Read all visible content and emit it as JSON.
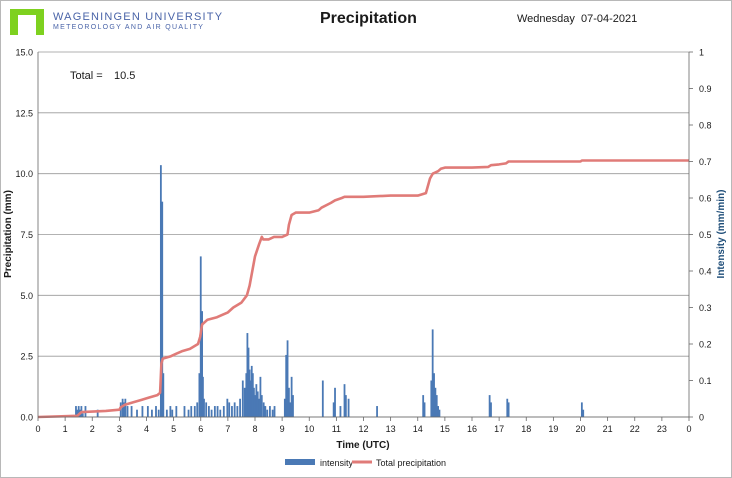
{
  "header": {
    "org_line1": "WAGENINGEN UNIVERSITY",
    "org_line2": "METEOROLOGY AND AIR QUALITY",
    "weekday": "Wednesday",
    "date": "07-04-2021"
  },
  "colors": {
    "logo_green": "#7ed11f",
    "bars": "#4a79b5",
    "line": "#e07b78",
    "grid": "#999999",
    "axis_title": "#1f4e79"
  },
  "chart_data": {
    "type": "bar+line",
    "title": "Precipitation",
    "xlabel": "Time (UTC)",
    "ylabel": "Precipitation (mm)",
    "y2label": "Intensity (mm/min)",
    "xlim": [
      0,
      24
    ],
    "ylim": [
      0,
      15
    ],
    "y2lim": [
      0,
      1
    ],
    "x_ticks": [
      "0",
      "1",
      "2",
      "3",
      "4",
      "5",
      "6",
      "7",
      "8",
      "9",
      "10",
      "11",
      "12",
      "13",
      "14",
      "15",
      "16",
      "17",
      "18",
      "19",
      "20",
      "21",
      "22",
      "23",
      "0"
    ],
    "y_ticks": [
      "0.0",
      "2.5",
      "5.0",
      "7.5",
      "10.0",
      "12.5",
      "15.0"
    ],
    "y2_ticks": [
      "0",
      "0.1",
      "0.2",
      "0.3",
      "0.4",
      "0.5",
      "0.6",
      "0.7",
      "0.8",
      "0.9",
      "1"
    ],
    "grid": "horizontal",
    "legend_position": "bottom",
    "annotation": {
      "label": "Total =",
      "value": "10.5"
    },
    "series": [
      {
        "name": "intensity",
        "kind": "bar",
        "axis": "right",
        "x": [
          1.4,
          1.45,
          1.5,
          1.55,
          1.6,
          1.65,
          1.75,
          2.2,
          3.05,
          3.12,
          3.18,
          3.22,
          3.3,
          3.45,
          3.65,
          3.85,
          4.05,
          4.2,
          4.35,
          4.45,
          4.53,
          4.58,
          4.62,
          4.75,
          4.88,
          4.95,
          5.1,
          5.4,
          5.55,
          5.65,
          5.78,
          5.87,
          5.95,
          6.0,
          6.05,
          6.08,
          6.12,
          6.2,
          6.3,
          6.4,
          6.52,
          6.62,
          6.72,
          6.85,
          6.98,
          7.05,
          7.15,
          7.25,
          7.35,
          7.45,
          7.55,
          7.62,
          7.68,
          7.72,
          7.76,
          7.8,
          7.84,
          7.88,
          7.92,
          7.96,
          8.0,
          8.05,
          8.1,
          8.15,
          8.2,
          8.25,
          8.32,
          8.38,
          8.45,
          8.55,
          8.65,
          8.72,
          9.1,
          9.15,
          9.2,
          9.25,
          9.3,
          9.35,
          9.4,
          10.5,
          10.9,
          10.95,
          11.15,
          11.3,
          11.35,
          11.45,
          12.5,
          14.2,
          14.25,
          14.5,
          14.55,
          14.6,
          14.65,
          14.7,
          14.75,
          14.8,
          16.65,
          16.7,
          17.3,
          17.35,
          20.05,
          20.1
        ],
        "values": [
          0.03,
          0.02,
          0.03,
          0.02,
          0.03,
          0.01,
          0.03,
          0.02,
          0.04,
          0.05,
          0.04,
          0.05,
          0.03,
          0.03,
          0.02,
          0.03,
          0.03,
          0.02,
          0.03,
          0.02,
          0.69,
          0.59,
          0.12,
          0.02,
          0.03,
          0.02,
          0.03,
          0.03,
          0.02,
          0.03,
          0.03,
          0.04,
          0.12,
          0.44,
          0.29,
          0.11,
          0.05,
          0.04,
          0.03,
          0.02,
          0.03,
          0.03,
          0.02,
          0.03,
          0.05,
          0.04,
          0.03,
          0.04,
          0.03,
          0.05,
          0.1,
          0.08,
          0.12,
          0.23,
          0.19,
          0.13,
          0.1,
          0.14,
          0.12,
          0.08,
          0.06,
          0.09,
          0.07,
          0.05,
          0.11,
          0.06,
          0.04,
          0.03,
          0.02,
          0.03,
          0.02,
          0.03,
          0.05,
          0.17,
          0.21,
          0.08,
          0.04,
          0.11,
          0.06,
          0.1,
          0.04,
          0.08,
          0.03,
          0.09,
          0.06,
          0.05,
          0.03,
          0.06,
          0.04,
          0.1,
          0.24,
          0.12,
          0.08,
          0.06,
          0.03,
          0.02,
          0.06,
          0.04,
          0.05,
          0.04,
          0.04,
          0.02
        ]
      },
      {
        "name": "Total precipitation",
        "kind": "line",
        "axis": "left",
        "x": [
          0,
          1.45,
          1.6,
          2.5,
          3.0,
          3.05,
          3.2,
          3.5,
          3.8,
          4.1,
          4.4,
          4.5,
          4.55,
          4.6,
          4.9,
          5.1,
          5.3,
          5.6,
          5.9,
          5.98,
          6.05,
          6.25,
          6.6,
          6.8,
          7.0,
          7.2,
          7.5,
          7.7,
          7.8,
          7.9,
          8.0,
          8.15,
          8.25,
          8.3,
          8.5,
          8.7,
          9.0,
          9.2,
          9.25,
          9.35,
          9.5,
          10.0,
          10.35,
          10.45,
          10.8,
          10.95,
          11.2,
          11.3,
          12.0,
          13.0,
          14.0,
          14.3,
          14.45,
          14.55,
          14.75,
          14.85,
          15.0,
          16.0,
          16.6,
          16.7,
          17.0,
          17.25,
          17.35,
          18.0,
          19.0,
          20.0,
          20.05,
          21.0,
          22.0,
          23.0,
          24.0
        ],
        "values": [
          0,
          0.05,
          0.2,
          0.25,
          0.3,
          0.4,
          0.5,
          0.6,
          0.7,
          0.8,
          0.9,
          1.0,
          2.2,
          2.4,
          2.5,
          2.6,
          2.7,
          2.8,
          3.0,
          3.3,
          3.8,
          4.0,
          4.1,
          4.2,
          4.3,
          4.5,
          4.7,
          5.0,
          5.4,
          6.0,
          6.6,
          7.1,
          7.4,
          7.3,
          7.3,
          7.4,
          7.4,
          7.5,
          7.9,
          8.3,
          8.4,
          8.4,
          8.5,
          8.6,
          8.8,
          8.9,
          9.0,
          9.05,
          9.05,
          9.1,
          9.1,
          9.2,
          9.8,
          10.0,
          10.1,
          10.2,
          10.25,
          10.25,
          10.28,
          10.35,
          10.38,
          10.42,
          10.5,
          10.5,
          10.5,
          10.5,
          10.54,
          10.54,
          10.54,
          10.54,
          10.54
        ]
      }
    ]
  }
}
